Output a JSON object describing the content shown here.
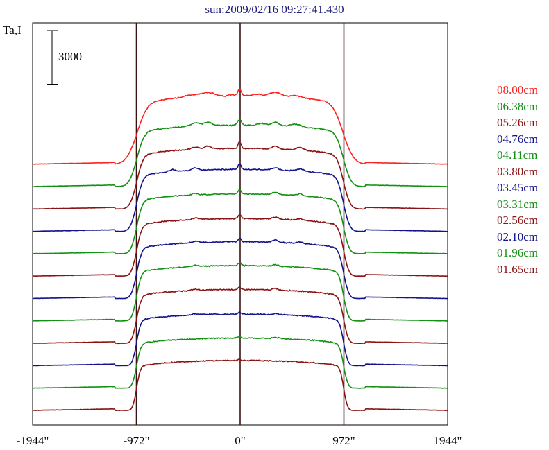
{
  "chart_data": {
    "type": "line",
    "title": "sun:2009/02/16 09:27:41.430",
    "ylabel": "Ta,I",
    "scale_bar_label": "3000",
    "scale_bar_value": 3000,
    "x_ticks": [
      "-1944\"",
      "-972\"",
      "0\"",
      "972\"",
      "1944\""
    ],
    "x_tick_values": [
      -1944,
      -972,
      0,
      972,
      1944
    ],
    "xlim": [
      -1944,
      1944
    ],
    "vertical_lines_at": [
      -972,
      0,
      972
    ],
    "series_offset": 3000,
    "colors": {
      "red": "#ff2020",
      "green": "#129012",
      "darkred": "#8b1212",
      "blue": "#12128b",
      "axes": "#000000",
      "vline": "#3a1212",
      "title": "#1a1a7a"
    },
    "series": [
      {
        "name": "08.00cm",
        "color": "#ff2020",
        "stack_index": 11,
        "quiet_sun": 9100,
        "rise_width": 110,
        "bumps": [
          [
            -450,
            350,
            120
          ],
          [
            -290,
            500,
            80
          ],
          [
            -80,
            200,
            40
          ],
          [
            -5,
            900,
            25
          ],
          [
            150,
            300,
            70
          ],
          [
            330,
            600,
            80
          ],
          [
            520,
            300,
            80
          ]
        ]
      },
      {
        "name": "06.38cm",
        "color": "#129012",
        "stack_index": 10,
        "quiet_sun": 8200,
        "rise_width": 80,
        "bumps": [
          [
            -420,
            450,
            60
          ],
          [
            -300,
            500,
            50
          ],
          [
            -5,
            800,
            25
          ],
          [
            200,
            300,
            50
          ],
          [
            330,
            500,
            50
          ],
          [
            520,
            350,
            70
          ]
        ]
      },
      {
        "name": "05.26cm",
        "color": "#8b1212",
        "stack_index": 9,
        "quiet_sun": 8100,
        "rise_width": 70,
        "bumps": [
          [
            -420,
            300,
            50
          ],
          [
            -300,
            400,
            40
          ],
          [
            -5,
            900,
            20
          ],
          [
            330,
            400,
            40
          ],
          [
            560,
            350,
            50
          ]
        ]
      },
      {
        "name": "04.76cm",
        "color": "#12128b",
        "stack_index": 8,
        "quiet_sun": 8300,
        "rise_width": 65,
        "bumps": [
          [
            -640,
            300,
            40
          ],
          [
            -420,
            300,
            40
          ],
          [
            -5,
            700,
            20
          ],
          [
            330,
            300,
            40
          ],
          [
            560,
            300,
            50
          ]
        ]
      },
      {
        "name": "04.11cm",
        "color": "#129012",
        "stack_index": 7,
        "quiet_sun": 8000,
        "rise_width": 60,
        "bumps": [
          [
            -420,
            200,
            40
          ],
          [
            -5,
            600,
            20
          ],
          [
            330,
            300,
            40
          ],
          [
            560,
            250,
            40
          ]
        ]
      },
      {
        "name": "03.80cm",
        "color": "#8b1212",
        "stack_index": 6,
        "quiet_sun": 7700,
        "rise_width": 55,
        "bumps": [
          [
            -420,
            200,
            40
          ],
          [
            -5,
            500,
            20
          ],
          [
            330,
            300,
            40
          ],
          [
            560,
            200,
            40
          ]
        ]
      },
      {
        "name": "03.45cm",
        "color": "#12128b",
        "stack_index": 5,
        "quiet_sun": 7600,
        "rise_width": 55,
        "bumps": [
          [
            -420,
            200,
            40
          ],
          [
            -5,
            500,
            20
          ],
          [
            330,
            300,
            40
          ],
          [
            560,
            200,
            40
          ]
        ]
      },
      {
        "name": "03.31cm",
        "color": "#129012",
        "stack_index": 4,
        "quiet_sun": 7400,
        "rise_width": 50,
        "bumps": [
          [
            -420,
            150,
            40
          ],
          [
            -5,
            400,
            20
          ],
          [
            330,
            200,
            40
          ]
        ]
      },
      {
        "name": "02.56cm",
        "color": "#8b1212",
        "stack_index": 3,
        "quiet_sun": 7200,
        "rise_width": 50,
        "bumps": [
          [
            -420,
            150,
            40
          ],
          [
            -5,
            300,
            20
          ],
          [
            330,
            200,
            40
          ]
        ]
      },
      {
        "name": "02.10cm",
        "color": "#12128b",
        "stack_index": 2,
        "quiet_sun": 6900,
        "rise_width": 45,
        "bumps": [
          [
            -420,
            150,
            40
          ],
          [
            -5,
            300,
            20
          ],
          [
            330,
            150,
            40
          ]
        ]
      },
      {
        "name": "01.96cm",
        "color": "#129012",
        "stack_index": 1,
        "quiet_sun": 6700,
        "rise_width": 45,
        "bumps": [
          [
            -5,
            200,
            20
          ],
          [
            330,
            150,
            40
          ]
        ]
      },
      {
        "name": "01.65cm",
        "color": "#8b1212",
        "stack_index": 0,
        "quiet_sun": 6700,
        "rise_width": 40,
        "bumps": [
          [
            -5,
            150,
            20
          ]
        ]
      }
    ],
    "grid": false,
    "legend_position": "right"
  }
}
